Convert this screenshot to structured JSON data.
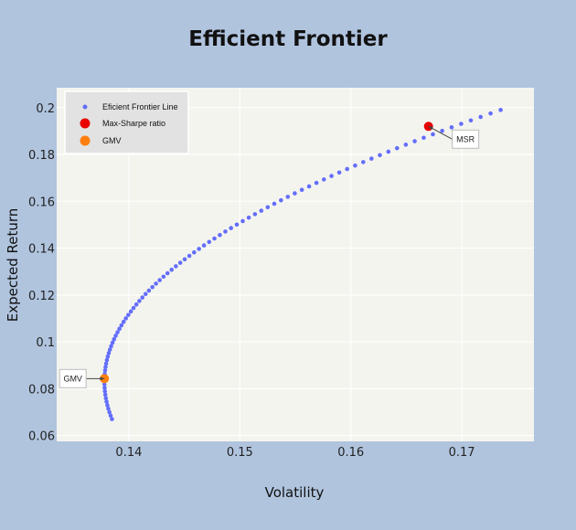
{
  "chart_data": {
    "type": "scatter",
    "title": "Efficient Frontier",
    "xlabel": "Volatility",
    "ylabel": "Expected Return",
    "xlim": [
      0.1335,
      0.1765
    ],
    "ylim": [
      0.0575,
      0.2085
    ],
    "xticks": [
      0.14,
      0.15,
      0.16,
      0.17
    ],
    "xtick_labels": [
      "0.14",
      "0.15",
      "0.16",
      "0.17"
    ],
    "yticks": [
      0.06,
      0.08,
      0.1,
      0.12,
      0.14,
      0.16,
      0.18,
      0.2
    ],
    "ytick_labels": [
      "0.06",
      "0.08",
      "0.1",
      "0.12",
      "0.14",
      "0.16",
      "0.18",
      "0.2"
    ],
    "grid": true,
    "legend_position": "top-left",
    "frontier": {
      "y_start": 0.067,
      "y_end": 0.199,
      "n_points": 90,
      "apex": {
        "vol": 0.1378,
        "ret": 0.083
      },
      "end": {
        "vol": 0.1735,
        "ret": 0.199
      }
    },
    "series": [
      {
        "name": "Eficient Frontier Line",
        "color": "#636efa",
        "marker": "point"
      },
      {
        "name": "Max-Sharpe ratio",
        "color": "#e80000",
        "marker": "circle",
        "x": [
          0.167
        ],
        "y": [
          0.192
        ]
      },
      {
        "name": "GMV",
        "color": "#ff7f0e",
        "marker": "circle",
        "x": [
          0.1378
        ],
        "y": [
          0.0843
        ]
      }
    ],
    "annotations": [
      {
        "text": "MSR",
        "x": 0.167,
        "y": 0.192
      },
      {
        "text": "GMV",
        "x": 0.1378,
        "y": 0.0843
      }
    ],
    "colors": {
      "page_background": "#b0c4de",
      "plot_background": "#f4f4ef",
      "grid": "#ffffff",
      "legend_background": "#e2e2e2"
    }
  }
}
